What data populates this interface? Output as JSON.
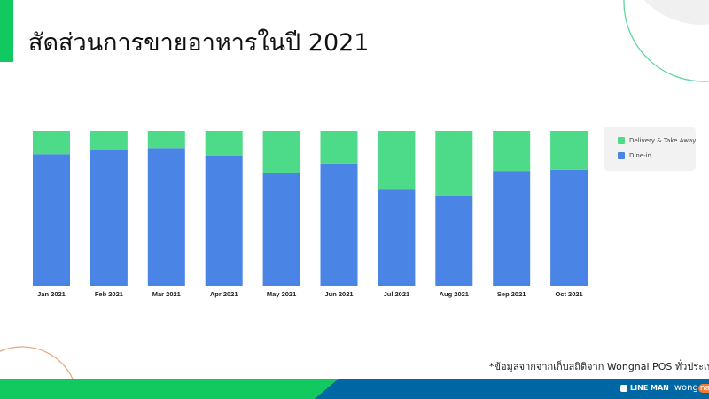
{
  "title": "สัดส่วนการขายอาหารในปี 2021",
  "footnote": "*ข้อมูลจากจากเก็บสถิติจาก Wongnai POS ทั่วประเทศ",
  "brand": {
    "lineman": "LINE MAN",
    "wongnai_prefix": "wong",
    "wongnai_suffix": "nai"
  },
  "colors": {
    "accent_green": "#12c95f",
    "footer_blue": "#0067a5",
    "dine_in": "#4a84e4",
    "delivery": "#4ddb8a"
  },
  "chart_data": {
    "type": "bar",
    "stacked": true,
    "normalized": true,
    "categories": [
      "Jan 2021",
      "Feb 2021",
      "Mar 2021",
      "Apr 2021",
      "May 2021",
      "Jun 2021",
      "Jul 2021",
      "Aug 2021",
      "Sep 2021",
      "Oct 2021"
    ],
    "series": [
      {
        "name": "Dine-in",
        "color": "#4a84e4",
        "values": [
          85,
          88,
          89,
          84,
          73,
          79,
          62,
          58,
          74,
          75
        ]
      },
      {
        "name": "Delivery & Take Away",
        "color": "#4ddb8a",
        "values": [
          15,
          12,
          11,
          16,
          27,
          21,
          38,
          42,
          26,
          25
        ]
      }
    ],
    "ylim": [
      0,
      100
    ],
    "unit": "%",
    "grid": false,
    "legend": "right",
    "legend_order": [
      "Delivery & Take Away",
      "Dine-in"
    ]
  }
}
